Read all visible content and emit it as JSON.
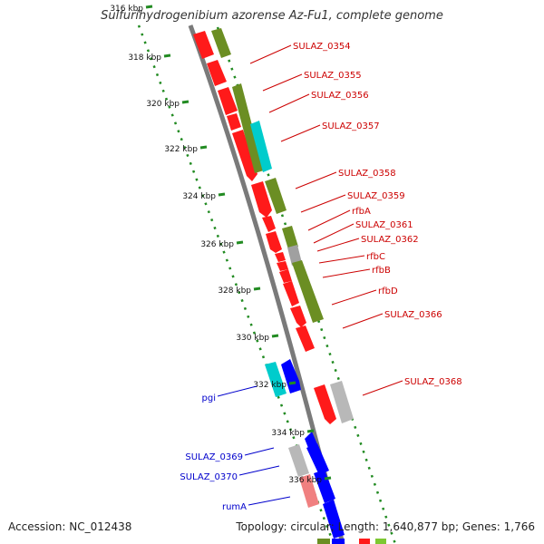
{
  "title": "Sulfurihydrogenibium azorense Az-Fu1, complete genome",
  "footer": {
    "accession": "Accession: NC_012438",
    "summary": "Topology: circular; Length: 1,640,877 bp; Genes: 1,766"
  },
  "colors": {
    "cds_forward": "#ff0000",
    "cds_reverse": "#0000ff",
    "cog_olive": "#6b8e23",
    "cog_cyan": "#00cccc",
    "cog_gray": "#b0b0b0",
    "backbone": "#808080",
    "ruler_dots": "#228b22",
    "forward_label": "#cc0000",
    "reverse_label": "#0000cc"
  },
  "ruler_ticks": [
    "316 kbp",
    "318 kbp",
    "320 kbp",
    "322 kbp",
    "324 kbp",
    "326 kbp",
    "328 kbp",
    "330 kbp",
    "332 kbp",
    "334 kbp",
    "336 kbp"
  ],
  "forward_labels": [
    "SULAZ_0354",
    "SULAZ_0355",
    "SULAZ_0356",
    "SULAZ_0357",
    "SULAZ_0358",
    "SULAZ_0359",
    "rfbA",
    "SULAZ_0361",
    "SULAZ_0362",
    "rfbC",
    "rfbB",
    "rfbD",
    "SULAZ_0366",
    "SULAZ_0368"
  ],
  "reverse_labels": [
    "pgi",
    "SULAZ_0369",
    "SULAZ_0370",
    "rumA"
  ]
}
